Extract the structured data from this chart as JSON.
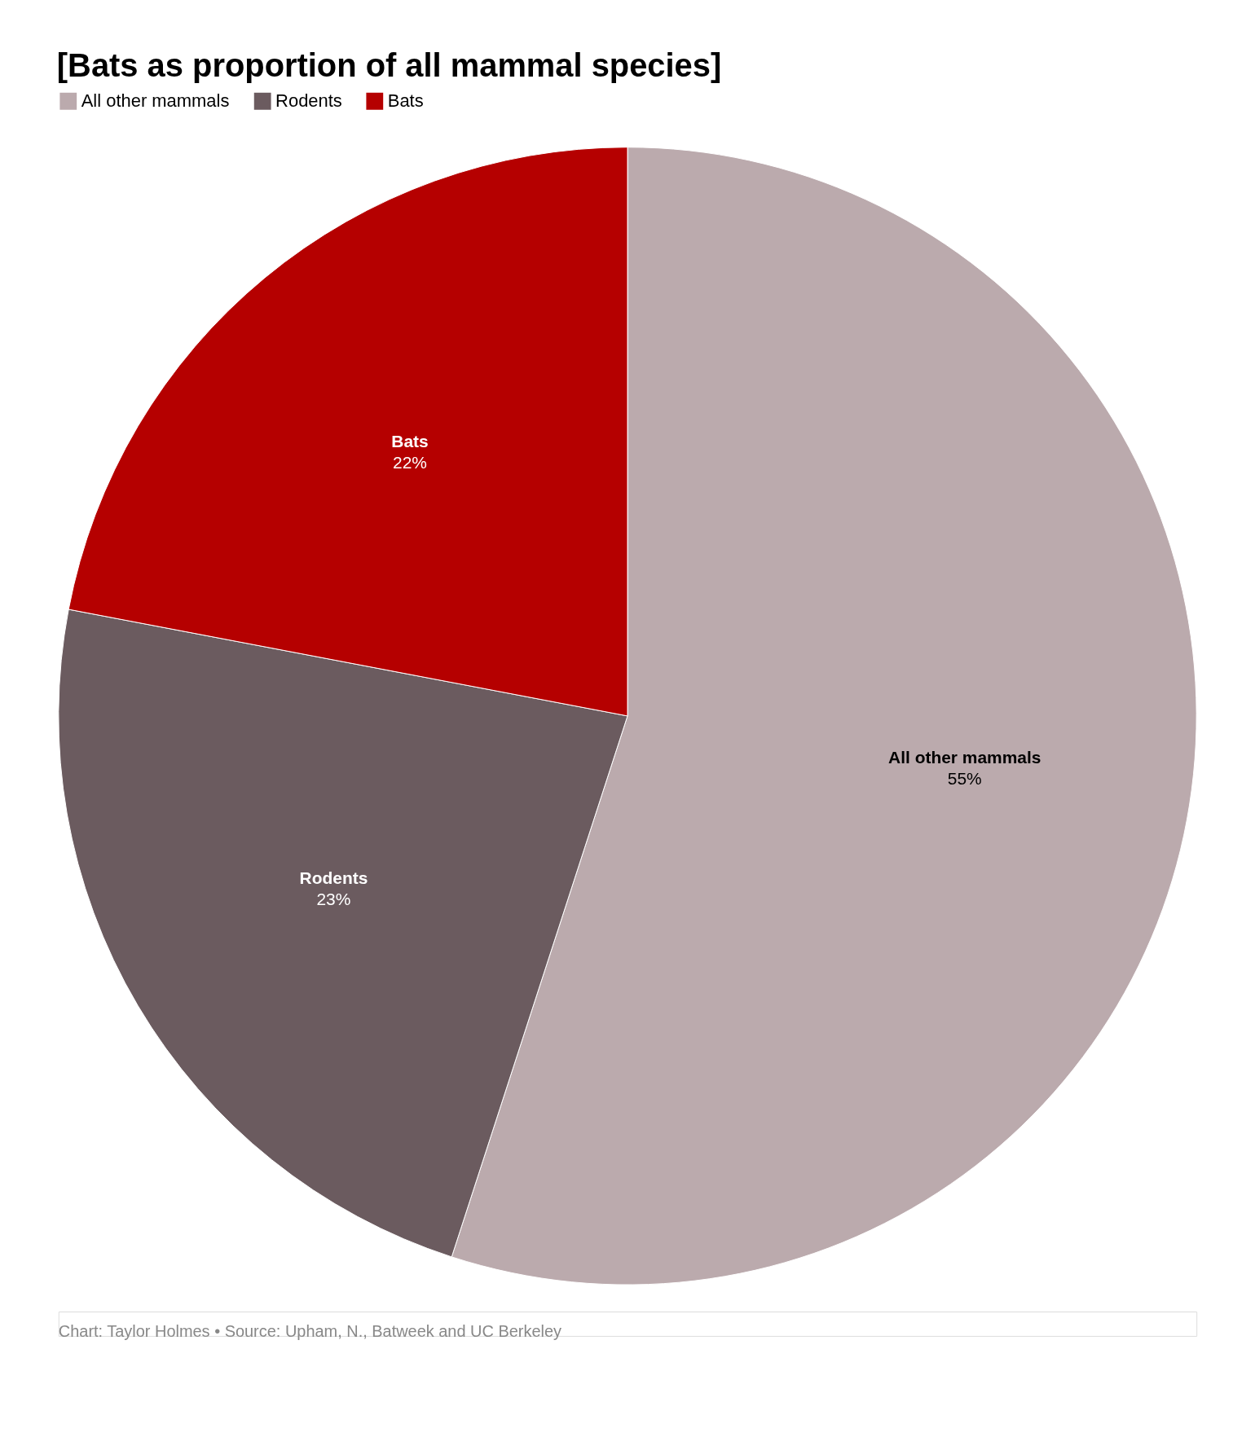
{
  "chart_data": {
    "type": "pie",
    "title": "[Bats as proportion of all mammal species]",
    "categories": [
      "All other mammals",
      "Rodents",
      "Bats"
    ],
    "values": [
      55,
      23,
      22
    ],
    "colors": [
      "#bbaaad",
      "#6b5b5f",
      "#b50000"
    ],
    "value_labels": [
      "55%",
      "23%",
      "22%"
    ],
    "legend": "top left",
    "annotations": [
      "Chart: Taylor Holmes • Source: Upham, N., Batweek and UC Berkeley"
    ]
  }
}
